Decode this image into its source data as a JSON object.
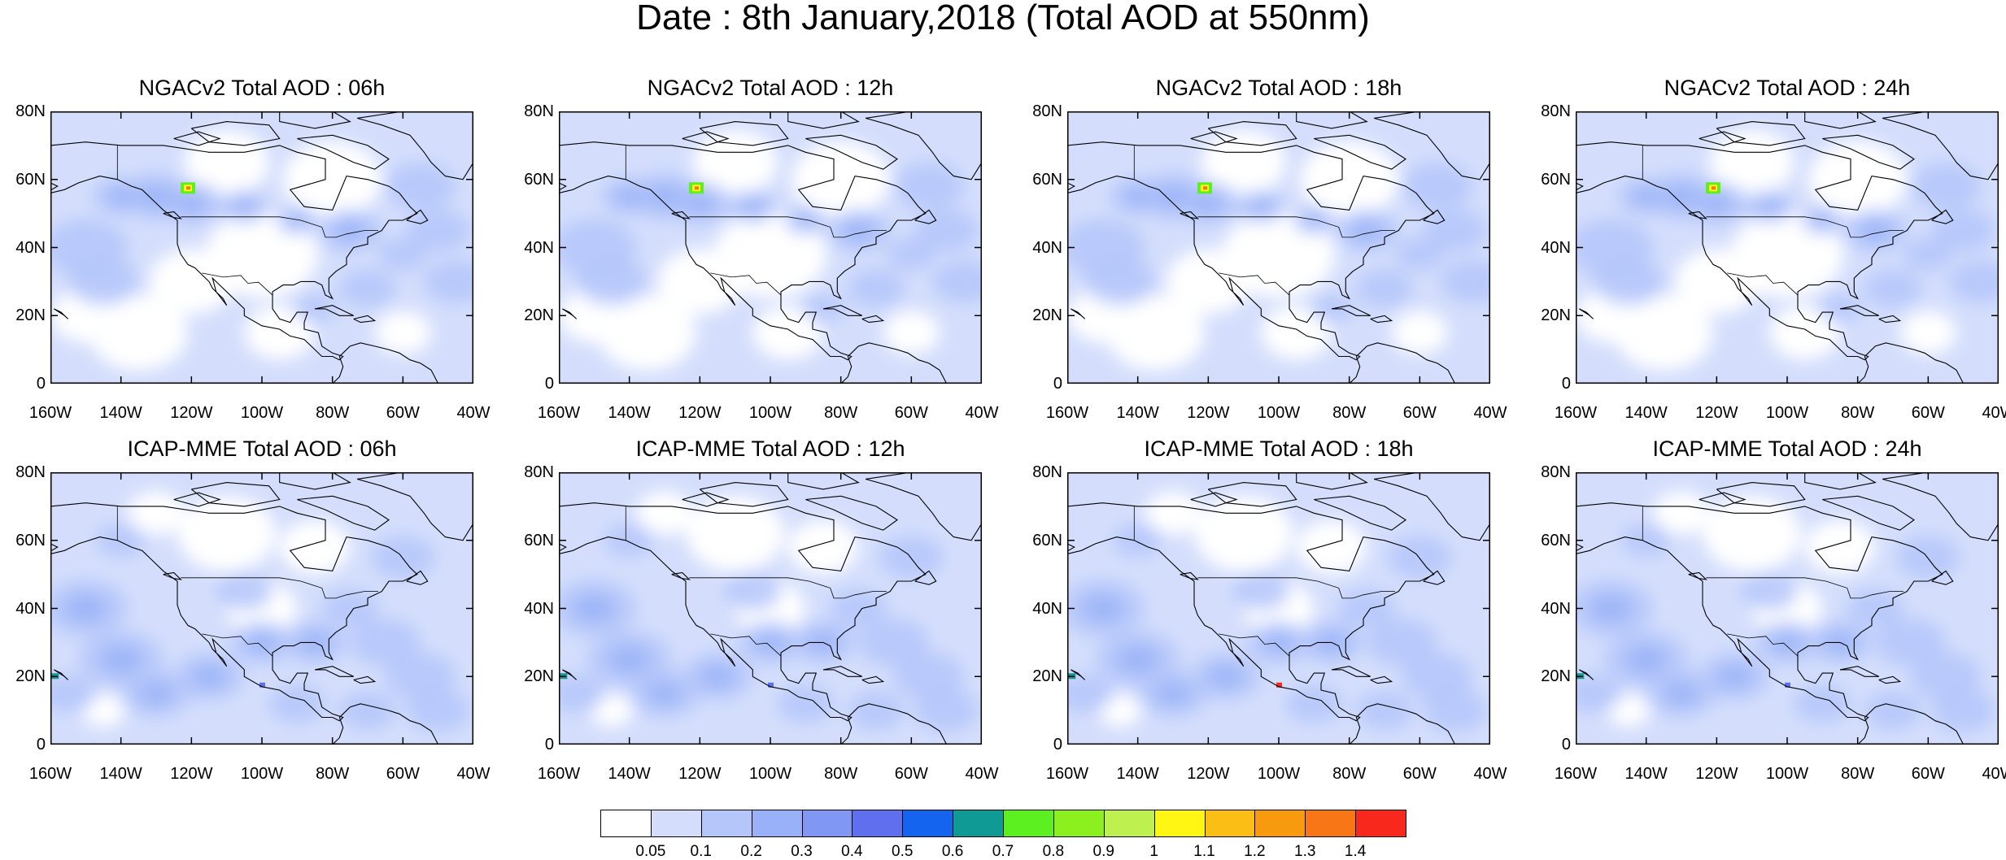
{
  "title": "Date : 8th January,2018 (Total AOD at 550nm)",
  "panels": [
    {
      "title": "NGACv2 Total AOD : 06h",
      "model": "NGACv2",
      "hour": "06h"
    },
    {
      "title": "NGACv2 Total AOD : 12h",
      "model": "NGACv2",
      "hour": "12h"
    },
    {
      "title": "NGACv2 Total AOD : 18h",
      "model": "NGACv2",
      "hour": "18h"
    },
    {
      "title": "NGACv2 Total AOD : 24h",
      "model": "NGACv2",
      "hour": "24h"
    },
    {
      "title": "ICAP-MME Total AOD : 06h",
      "model": "ICAP-MME",
      "hour": "06h"
    },
    {
      "title": "ICAP-MME Total AOD : 12h",
      "model": "ICAP-MME",
      "hour": "12h"
    },
    {
      "title": "ICAP-MME Total AOD : 18h",
      "model": "ICAP-MME",
      "hour": "18h"
    },
    {
      "title": "ICAP-MME Total AOD : 24h",
      "model": "ICAP-MME",
      "hour": "24h"
    }
  ],
  "y_ticks": [
    "80N",
    "60N",
    "40N",
    "20N",
    "0"
  ],
  "x_ticks": [
    "160W",
    "140W",
    "120W",
    "100W",
    "80W",
    "60W",
    "40W"
  ],
  "map_extent": {
    "lon_min": -160,
    "lon_max": -40,
    "lat_min": 0,
    "lat_max": 80
  },
  "colorbar": {
    "labels": [
      "0.05",
      "0.1",
      "0.2",
      "0.3",
      "0.4",
      "0.5",
      "0.6",
      "0.7",
      "0.8",
      "0.9",
      "1",
      "1.1",
      "1.2",
      "1.3",
      "1.4"
    ],
    "colors": [
      "#ffffff",
      "#d4defc",
      "#b4c6fa",
      "#98b1f8",
      "#8098f4",
      "#5f6fee",
      "#1464f0",
      "#109a96",
      "#5cf020",
      "#8cf01e",
      "#bef050",
      "#fff614",
      "#fbbe14",
      "#f89a0e",
      "#f87616",
      "#f8281c"
    ]
  }
}
